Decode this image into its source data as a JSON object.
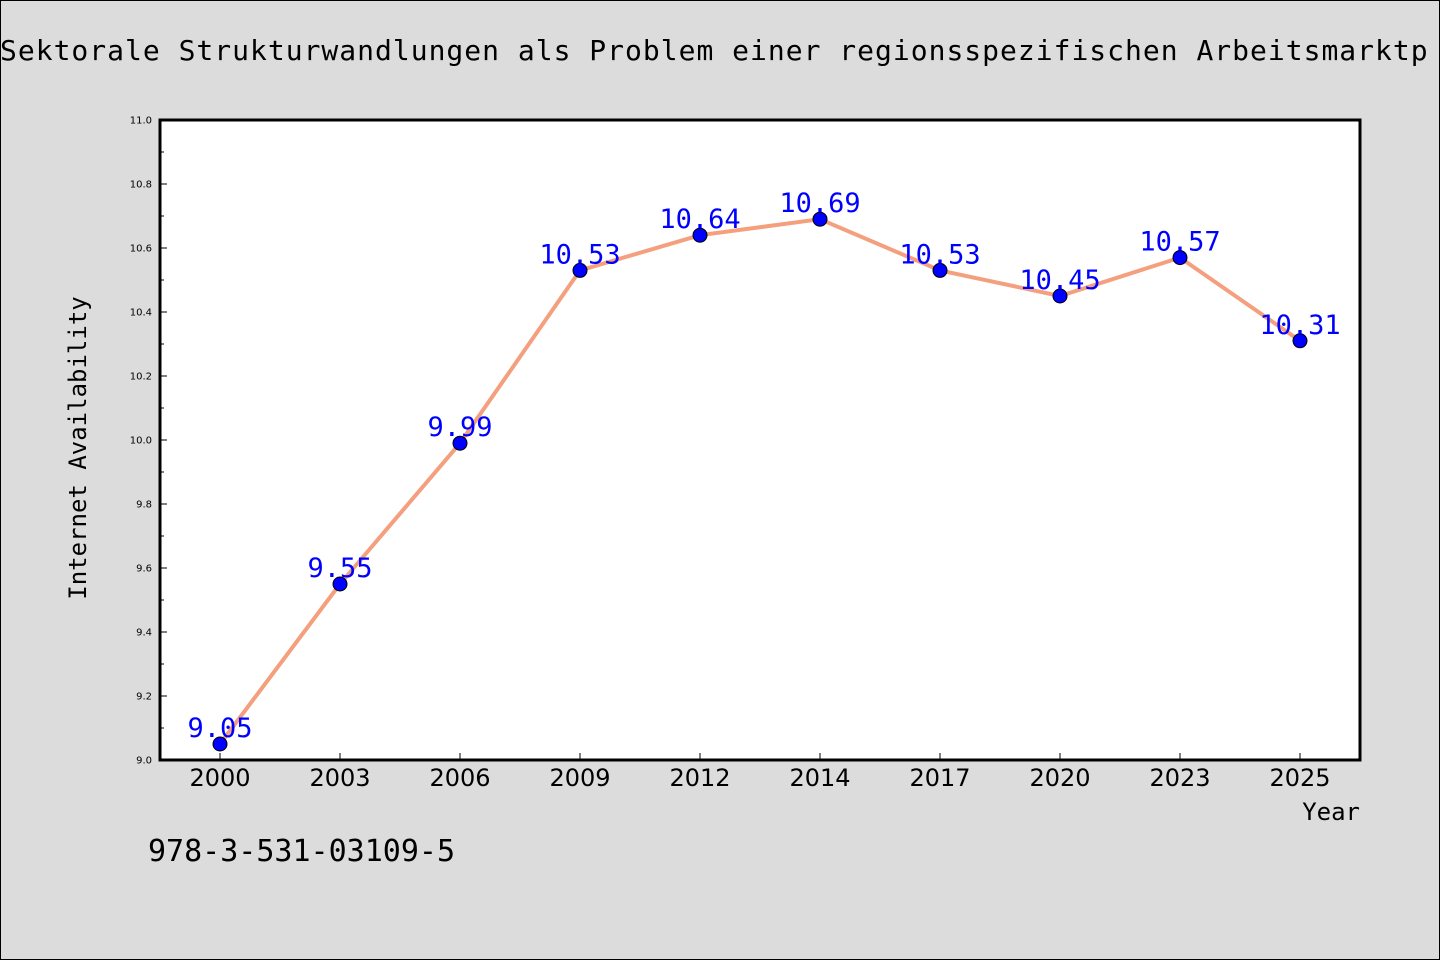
{
  "title": "Sektorale Strukturwandlungen als Problem einer regionsspezifischen Arbeitsmarktp",
  "footnote": "978-3-531-03109-5",
  "chart_data": {
    "type": "line",
    "xlabel": "Year",
    "ylabel": "Internet Availability",
    "categories": [
      "2000",
      "2003",
      "2006",
      "2009",
      "2012",
      "2014",
      "2017",
      "2020",
      "2023",
      "2025"
    ],
    "series": [
      {
        "values": [
          9.05,
          9.55,
          9.99,
          10.53,
          10.64,
          10.69,
          10.53,
          10.45,
          10.57,
          10.31
        ],
        "data_labels": [
          "9.05",
          "9.55",
          "9.99",
          "10.53",
          "10.64",
          "10.69",
          "10.53",
          "10.45",
          "10.57",
          "10.31"
        ]
      }
    ],
    "ylim": [
      9.0,
      11.0
    ],
    "yticks": [
      "9.0",
      "9.2",
      "9.4",
      "9.6",
      "9.8",
      "10.0",
      "10.2",
      "10.4",
      "10.6",
      "10.8",
      "11.0"
    ],
    "grid": false,
    "legend": "none",
    "colors": {
      "line": "#f4a07f",
      "marker": "#0000ff",
      "data_label": "#0000ff",
      "plot_background": "#ffffff",
      "figure_background": "#dcdcdc"
    }
  }
}
